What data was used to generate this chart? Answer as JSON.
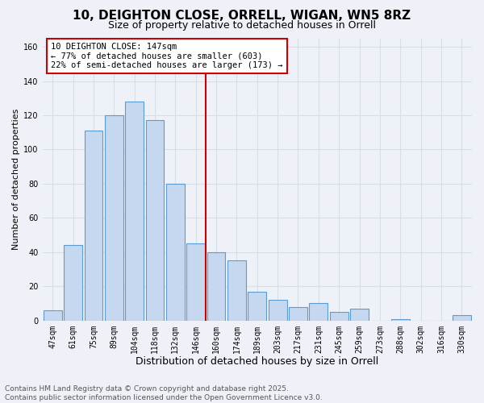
{
  "title": "10, DEIGHTON CLOSE, ORRELL, WIGAN, WN5 8RZ",
  "subtitle": "Size of property relative to detached houses in Orrell",
  "xlabel": "Distribution of detached houses by size in Orrell",
  "ylabel": "Number of detached properties",
  "bar_labels": [
    "47sqm",
    "61sqm",
    "75sqm",
    "89sqm",
    "104sqm",
    "118sqm",
    "132sqm",
    "146sqm",
    "160sqm",
    "174sqm",
    "189sqm",
    "203sqm",
    "217sqm",
    "231sqm",
    "245sqm",
    "259sqm",
    "273sqm",
    "288sqm",
    "302sqm",
    "316sqm",
    "330sqm"
  ],
  "bar_values": [
    6,
    44,
    111,
    120,
    128,
    117,
    80,
    45,
    40,
    35,
    17,
    12,
    8,
    10,
    5,
    7,
    0,
    1,
    0,
    0,
    3
  ],
  "bar_color": "#c5d8f0",
  "bar_edge_color": "#5b9bd5",
  "vline_color": "#cc0000",
  "annotation_title": "10 DEIGHTON CLOSE: 147sqm",
  "annotation_line1": "← 77% of detached houses are smaller (603)",
  "annotation_line2": "22% of semi-detached houses are larger (173) →",
  "annotation_box_color": "#ffffff",
  "annotation_box_edge": "#cc0000",
  "ylim": [
    0,
    165
  ],
  "footnote1": "Contains HM Land Registry data © Crown copyright and database right 2025.",
  "footnote2": "Contains public sector information licensed under the Open Government Licence v3.0.",
  "background_color": "#eef2f8",
  "grid_color": "#d8dde8",
  "title_fontsize": 11,
  "subtitle_fontsize": 9,
  "xlabel_fontsize": 9,
  "ylabel_fontsize": 8,
  "tick_fontsize": 7,
  "footnote_fontsize": 6.5,
  "annotation_fontsize": 7.5
}
